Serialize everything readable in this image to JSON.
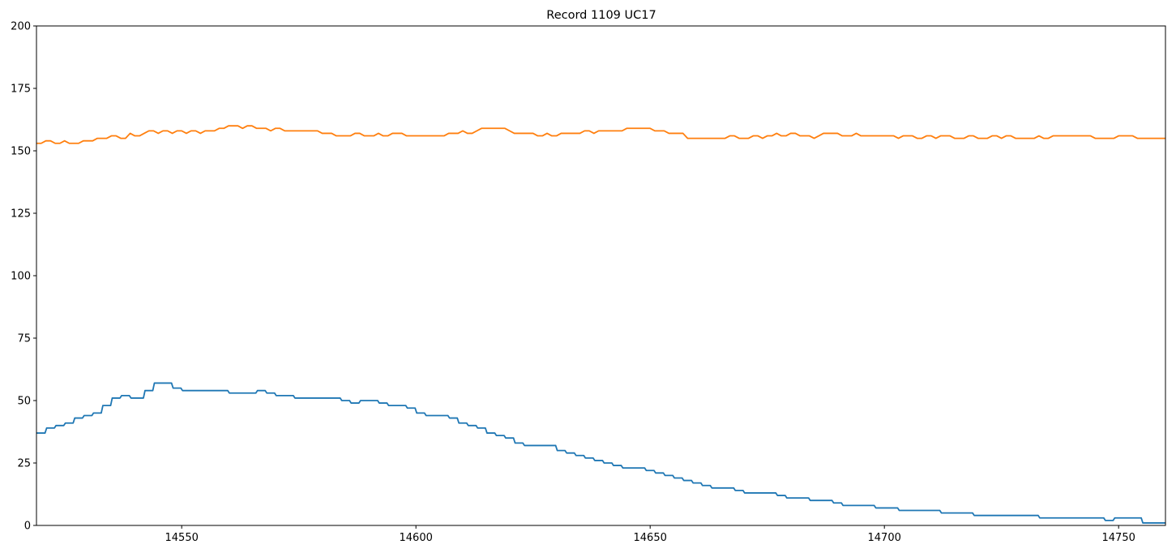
{
  "chart_data": {
    "type": "line",
    "title": "Record 1109 UC17",
    "xlabel": "",
    "ylabel": "",
    "xlim": [
      14519,
      14760
    ],
    "ylim": [
      0,
      200
    ],
    "xticks": [
      14550,
      14600,
      14650,
      14700,
      14750
    ],
    "yticks": [
      0,
      25,
      50,
      75,
      100,
      125,
      150,
      175,
      200
    ],
    "grid": false,
    "legend": "none",
    "series": [
      {
        "color": "#1f77b4",
        "steps": [
          [
            14519,
            37
          ],
          [
            14521,
            39
          ],
          [
            14523,
            40
          ],
          [
            14525,
            41
          ],
          [
            14527,
            43
          ],
          [
            14529,
            44
          ],
          [
            14531,
            45
          ],
          [
            14533,
            48
          ],
          [
            14535,
            51
          ],
          [
            14537,
            52
          ],
          [
            14539,
            51
          ],
          [
            14542,
            54
          ],
          [
            14544,
            57
          ],
          [
            14548,
            55
          ],
          [
            14550,
            54
          ],
          [
            14560,
            53
          ],
          [
            14566,
            54
          ],
          [
            14568,
            53
          ],
          [
            14570,
            52
          ],
          [
            14574,
            51
          ],
          [
            14584,
            50
          ],
          [
            14586,
            49
          ],
          [
            14588,
            50
          ],
          [
            14592,
            49
          ],
          [
            14594,
            48
          ],
          [
            14598,
            47
          ],
          [
            14600,
            45
          ],
          [
            14602,
            44
          ],
          [
            14607,
            43
          ],
          [
            14609,
            41
          ],
          [
            14611,
            40
          ],
          [
            14613,
            39
          ],
          [
            14615,
            37
          ],
          [
            14617,
            36
          ],
          [
            14619,
            35
          ],
          [
            14621,
            33
          ],
          [
            14623,
            32
          ],
          [
            14630,
            30
          ],
          [
            14632,
            29
          ],
          [
            14634,
            28
          ],
          [
            14636,
            27
          ],
          [
            14638,
            26
          ],
          [
            14640,
            25
          ],
          [
            14642,
            24
          ],
          [
            14644,
            23
          ],
          [
            14649,
            22
          ],
          [
            14651,
            21
          ],
          [
            14653,
            20
          ],
          [
            14655,
            19
          ],
          [
            14657,
            18
          ],
          [
            14659,
            17
          ],
          [
            14661,
            16
          ],
          [
            14663,
            15
          ],
          [
            14668,
            14
          ],
          [
            14670,
            13
          ],
          [
            14677,
            12
          ],
          [
            14679,
            11
          ],
          [
            14684,
            10
          ],
          [
            14689,
            9
          ],
          [
            14691,
            8
          ],
          [
            14698,
            7
          ],
          [
            14703,
            6
          ],
          [
            14712,
            5
          ],
          [
            14719,
            4
          ],
          [
            14733,
            3
          ],
          [
            14747,
            2
          ],
          [
            14749,
            3
          ],
          [
            14755,
            1
          ],
          [
            14760,
            1
          ]
        ]
      },
      {
        "color": "#ff7f0e",
        "points": [
          [
            14519,
            153
          ],
          [
            14520,
            153
          ],
          [
            14521,
            154
          ],
          [
            14522,
            154
          ],
          [
            14523,
            153
          ],
          [
            14524,
            153
          ],
          [
            14525,
            154
          ],
          [
            14526,
            153
          ],
          [
            14527,
            153
          ],
          [
            14528,
            153
          ],
          [
            14529,
            154
          ],
          [
            14530,
            154
          ],
          [
            14531,
            154
          ],
          [
            14532,
            155
          ],
          [
            14533,
            155
          ],
          [
            14534,
            155
          ],
          [
            14535,
            156
          ],
          [
            14536,
            156
          ],
          [
            14537,
            155
          ],
          [
            14538,
            155
          ],
          [
            14539,
            157
          ],
          [
            14540,
            156
          ],
          [
            14541,
            156
          ],
          [
            14542,
            157
          ],
          [
            14543,
            158
          ],
          [
            14544,
            158
          ],
          [
            14545,
            157
          ],
          [
            14546,
            158
          ],
          [
            14547,
            158
          ],
          [
            14548,
            157
          ],
          [
            14549,
            158
          ],
          [
            14550,
            158
          ],
          [
            14551,
            157
          ],
          [
            14552,
            158
          ],
          [
            14553,
            158
          ],
          [
            14554,
            157
          ],
          [
            14555,
            158
          ],
          [
            14556,
            158
          ],
          [
            14557,
            158
          ],
          [
            14558,
            159
          ],
          [
            14559,
            159
          ],
          [
            14560,
            160
          ],
          [
            14561,
            160
          ],
          [
            14562,
            160
          ],
          [
            14563,
            159
          ],
          [
            14564,
            160
          ],
          [
            14565,
            160
          ],
          [
            14566,
            159
          ],
          [
            14567,
            159
          ],
          [
            14568,
            159
          ],
          [
            14569,
            158
          ],
          [
            14570,
            159
          ],
          [
            14571,
            159
          ],
          [
            14572,
            158
          ],
          [
            14573,
            158
          ],
          [
            14574,
            158
          ],
          [
            14575,
            158
          ],
          [
            14576,
            158
          ],
          [
            14577,
            158
          ],
          [
            14578,
            158
          ],
          [
            14579,
            158
          ],
          [
            14580,
            157
          ],
          [
            14581,
            157
          ],
          [
            14582,
            157
          ],
          [
            14583,
            156
          ],
          [
            14584,
            156
          ],
          [
            14585,
            156
          ],
          [
            14586,
            156
          ],
          [
            14587,
            157
          ],
          [
            14588,
            157
          ],
          [
            14589,
            156
          ],
          [
            14590,
            156
          ],
          [
            14591,
            156
          ],
          [
            14592,
            157
          ],
          [
            14593,
            156
          ],
          [
            14594,
            156
          ],
          [
            14595,
            157
          ],
          [
            14596,
            157
          ],
          [
            14597,
            157
          ],
          [
            14598,
            156
          ],
          [
            14599,
            156
          ],
          [
            14600,
            156
          ],
          [
            14601,
            156
          ],
          [
            14602,
            156
          ],
          [
            14603,
            156
          ],
          [
            14604,
            156
          ],
          [
            14605,
            156
          ],
          [
            14606,
            156
          ],
          [
            14607,
            157
          ],
          [
            14608,
            157
          ],
          [
            14609,
            157
          ],
          [
            14610,
            158
          ],
          [
            14611,
            157
          ],
          [
            14612,
            157
          ],
          [
            14613,
            158
          ],
          [
            14614,
            159
          ],
          [
            14615,
            159
          ],
          [
            14616,
            159
          ],
          [
            14617,
            159
          ],
          [
            14618,
            159
          ],
          [
            14619,
            159
          ],
          [
            14620,
            158
          ],
          [
            14621,
            157
          ],
          [
            14622,
            157
          ],
          [
            14623,
            157
          ],
          [
            14624,
            157
          ],
          [
            14625,
            157
          ],
          [
            14626,
            156
          ],
          [
            14627,
            156
          ],
          [
            14628,
            157
          ],
          [
            14629,
            156
          ],
          [
            14630,
            156
          ],
          [
            14631,
            157
          ],
          [
            14632,
            157
          ],
          [
            14633,
            157
          ],
          [
            14634,
            157
          ],
          [
            14635,
            157
          ],
          [
            14636,
            158
          ],
          [
            14637,
            158
          ],
          [
            14638,
            157
          ],
          [
            14639,
            158
          ],
          [
            14640,
            158
          ],
          [
            14641,
            158
          ],
          [
            14642,
            158
          ],
          [
            14643,
            158
          ],
          [
            14644,
            158
          ],
          [
            14645,
            159
          ],
          [
            14646,
            159
          ],
          [
            14647,
            159
          ],
          [
            14648,
            159
          ],
          [
            14649,
            159
          ],
          [
            14650,
            159
          ],
          [
            14651,
            158
          ],
          [
            14652,
            158
          ],
          [
            14653,
            158
          ],
          [
            14654,
            157
          ],
          [
            14655,
            157
          ],
          [
            14656,
            157
          ],
          [
            14657,
            157
          ],
          [
            14658,
            155
          ],
          [
            14659,
            155
          ],
          [
            14660,
            155
          ],
          [
            14661,
            155
          ],
          [
            14662,
            155
          ],
          [
            14663,
            155
          ],
          [
            14664,
            155
          ],
          [
            14665,
            155
          ],
          [
            14666,
            155
          ],
          [
            14667,
            156
          ],
          [
            14668,
            156
          ],
          [
            14669,
            155
          ],
          [
            14670,
            155
          ],
          [
            14671,
            155
          ],
          [
            14672,
            156
          ],
          [
            14673,
            156
          ],
          [
            14674,
            155
          ],
          [
            14675,
            156
          ],
          [
            14676,
            156
          ],
          [
            14677,
            157
          ],
          [
            14678,
            156
          ],
          [
            14679,
            156
          ],
          [
            14680,
            157
          ],
          [
            14681,
            157
          ],
          [
            14682,
            156
          ],
          [
            14683,
            156
          ],
          [
            14684,
            156
          ],
          [
            14685,
            155
          ],
          [
            14686,
            156
          ],
          [
            14687,
            157
          ],
          [
            14688,
            157
          ],
          [
            14689,
            157
          ],
          [
            14690,
            157
          ],
          [
            14691,
            156
          ],
          [
            14692,
            156
          ],
          [
            14693,
            156
          ],
          [
            14694,
            157
          ],
          [
            14695,
            156
          ],
          [
            14696,
            156
          ],
          [
            14697,
            156
          ],
          [
            14698,
            156
          ],
          [
            14699,
            156
          ],
          [
            14700,
            156
          ],
          [
            14701,
            156
          ],
          [
            14702,
            156
          ],
          [
            14703,
            155
          ],
          [
            14704,
            156
          ],
          [
            14705,
            156
          ],
          [
            14706,
            156
          ],
          [
            14707,
            155
          ],
          [
            14708,
            155
          ],
          [
            14709,
            156
          ],
          [
            14710,
            156
          ],
          [
            14711,
            155
          ],
          [
            14712,
            156
          ],
          [
            14713,
            156
          ],
          [
            14714,
            156
          ],
          [
            14715,
            155
          ],
          [
            14716,
            155
          ],
          [
            14717,
            155
          ],
          [
            14718,
            156
          ],
          [
            14719,
            156
          ],
          [
            14720,
            155
          ],
          [
            14721,
            155
          ],
          [
            14722,
            155
          ],
          [
            14723,
            156
          ],
          [
            14724,
            156
          ],
          [
            14725,
            155
          ],
          [
            14726,
            156
          ],
          [
            14727,
            156
          ],
          [
            14728,
            155
          ],
          [
            14729,
            155
          ],
          [
            14730,
            155
          ],
          [
            14731,
            155
          ],
          [
            14732,
            155
          ],
          [
            14733,
            156
          ],
          [
            14734,
            155
          ],
          [
            14735,
            155
          ],
          [
            14736,
            156
          ],
          [
            14737,
            156
          ],
          [
            14738,
            156
          ],
          [
            14739,
            156
          ],
          [
            14740,
            156
          ],
          [
            14741,
            156
          ],
          [
            14742,
            156
          ],
          [
            14743,
            156
          ],
          [
            14744,
            156
          ],
          [
            14745,
            155
          ],
          [
            14746,
            155
          ],
          [
            14747,
            155
          ],
          [
            14748,
            155
          ],
          [
            14749,
            155
          ],
          [
            14750,
            156
          ],
          [
            14751,
            156
          ],
          [
            14752,
            156
          ],
          [
            14753,
            156
          ],
          [
            14754,
            155
          ],
          [
            14755,
            155
          ],
          [
            14756,
            155
          ],
          [
            14757,
            155
          ],
          [
            14758,
            155
          ],
          [
            14759,
            155
          ],
          [
            14760,
            155
          ]
        ]
      }
    ]
  }
}
